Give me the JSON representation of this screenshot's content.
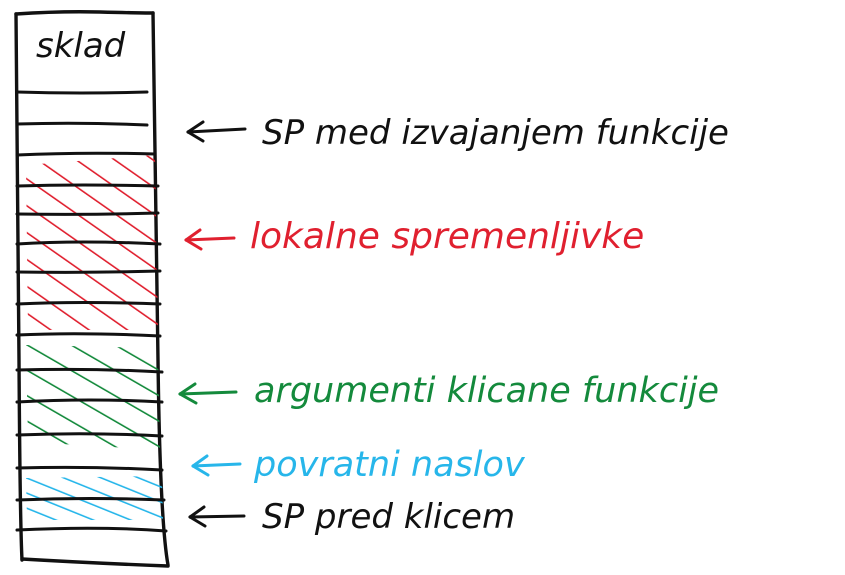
{
  "title": "sklad",
  "labels": [
    {
      "id": "sp-during",
      "text": "SP med izvajanjem funkcije",
      "color": "#111111"
    },
    {
      "id": "locals",
      "text": "lokalne spremenljivke",
      "color": "#e0202f"
    },
    {
      "id": "args",
      "text": "argumenti klicane funkcije",
      "color": "#148a3c"
    },
    {
      "id": "ret",
      "text": "povratni naslov",
      "color": "#27b6ea"
    },
    {
      "id": "sp-before",
      "text": "SP pred klicem",
      "color": "#111111"
    }
  ],
  "regions": [
    {
      "id": "locals",
      "color": "#e0202f"
    },
    {
      "id": "args",
      "color": "#148a3c"
    },
    {
      "id": "ret",
      "color": "#27b6ea"
    }
  ]
}
